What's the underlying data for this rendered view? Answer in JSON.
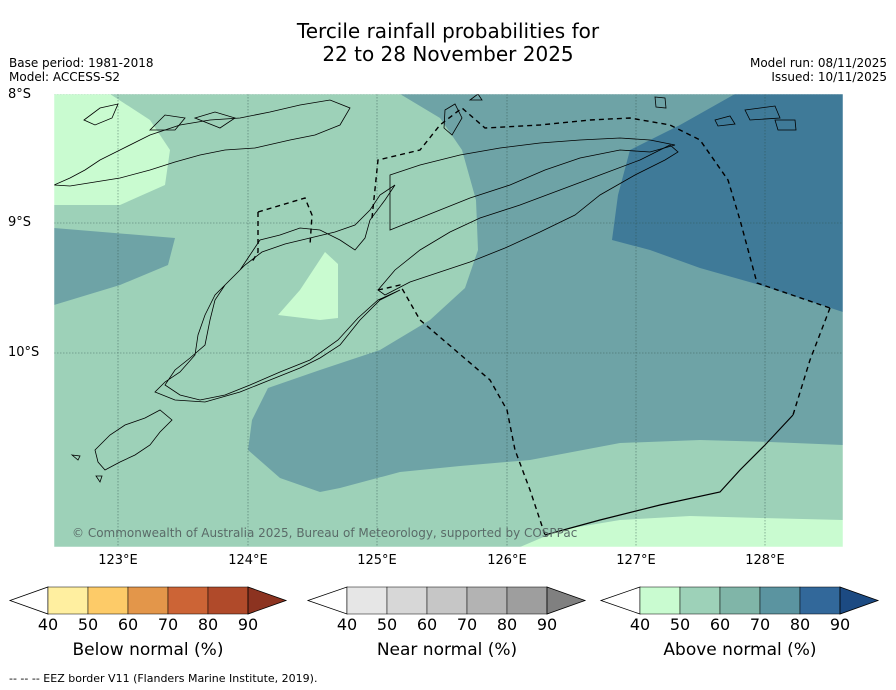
{
  "title_line1": "Tercile rainfall probabilities for",
  "title_line2": "22 to 28 November 2025",
  "base_period": "Base period: 1981-2018",
  "model": "Model: ACCESS-S2",
  "model_run": "Model run: 08/11/2025",
  "issued": "Issued: 10/11/2025",
  "credit": "© Commonwealth of Australia 2025, Bureau of Meteorology, supported by COSPPac",
  "footnote": "--  --  -- EEZ border V11 (Flanders Marine Institute, 2019).",
  "lat_labels": [
    "8°S",
    "9°S",
    "10°S"
  ],
  "lon_labels": [
    "123°E",
    "124°E",
    "125°E",
    "126°E",
    "127°E",
    "128°E"
  ],
  "colorbars": [
    {
      "label": "Below normal (%)",
      "ticks": [
        "40",
        "50",
        "60",
        "70",
        "80",
        "90"
      ],
      "colors": [
        "#ffefa0",
        "#fdcb68",
        "#e3964a",
        "#cc6436",
        "#b04a2a",
        "#8c3320"
      ]
    },
    {
      "label": "Near normal (%)",
      "ticks": [
        "40",
        "50",
        "60",
        "70",
        "80",
        "90"
      ],
      "colors": [
        "#e6e6e6",
        "#d7d7d7",
        "#c6c6c6",
        "#b3b3b3",
        "#9e9e9e",
        "#808080"
      ]
    },
    {
      "label": "Above normal (%)",
      "ticks": [
        "40",
        "50",
        "60",
        "70",
        "80",
        "90"
      ],
      "colors": [
        "#c9fbd0",
        "#9dd1b8",
        "#80b5a8",
        "#5b94a0",
        "#32689a",
        "#1c4a82"
      ]
    }
  ],
  "map_colors": {
    "above_40": "#c9fbd0",
    "above_50": "#9dd1b8",
    "above_60": "#6ea3a6",
    "above_70": "#3f7a98"
  }
}
